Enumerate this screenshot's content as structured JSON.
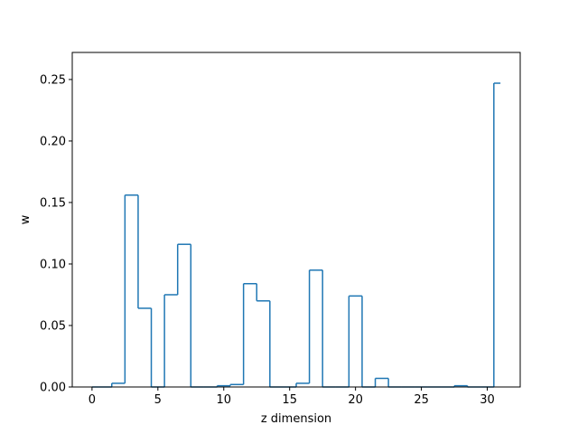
{
  "chart_data": {
    "type": "step",
    "title": "",
    "xlabel": "z dimension",
    "ylabel": "w",
    "xlim": [
      -1.5,
      32.5
    ],
    "ylim": [
      0,
      0.272
    ],
    "xticks": [
      0,
      5,
      10,
      15,
      20,
      25,
      30
    ],
    "yticks": [
      0.0,
      0.05,
      0.1,
      0.15,
      0.2,
      0.25
    ],
    "ytick_labels": [
      "0.00",
      "0.05",
      "0.10",
      "0.15",
      "0.20",
      "0.25"
    ],
    "grid": false,
    "step_where": "mid",
    "series": [
      {
        "color": "#1f77b4",
        "x": [
          0,
          1,
          2,
          3,
          4,
          5,
          6,
          7,
          8,
          9,
          10,
          11,
          12,
          13,
          14,
          15,
          16,
          17,
          18,
          19,
          20,
          21,
          22,
          23,
          24,
          25,
          26,
          27,
          28,
          29,
          30,
          31
        ],
        "values": [
          0.0,
          0.0,
          0.003,
          0.156,
          0.064,
          0.0,
          0.075,
          0.116,
          0.0,
          0.0,
          0.001,
          0.002,
          0.084,
          0.07,
          0.0,
          0.0,
          0.003,
          0.095,
          0.0,
          0.0,
          0.074,
          0.0,
          0.007,
          0.0,
          0.0,
          0.0,
          0.0,
          0.0,
          0.001,
          0.0,
          0.0,
          0.247
        ]
      }
    ]
  }
}
